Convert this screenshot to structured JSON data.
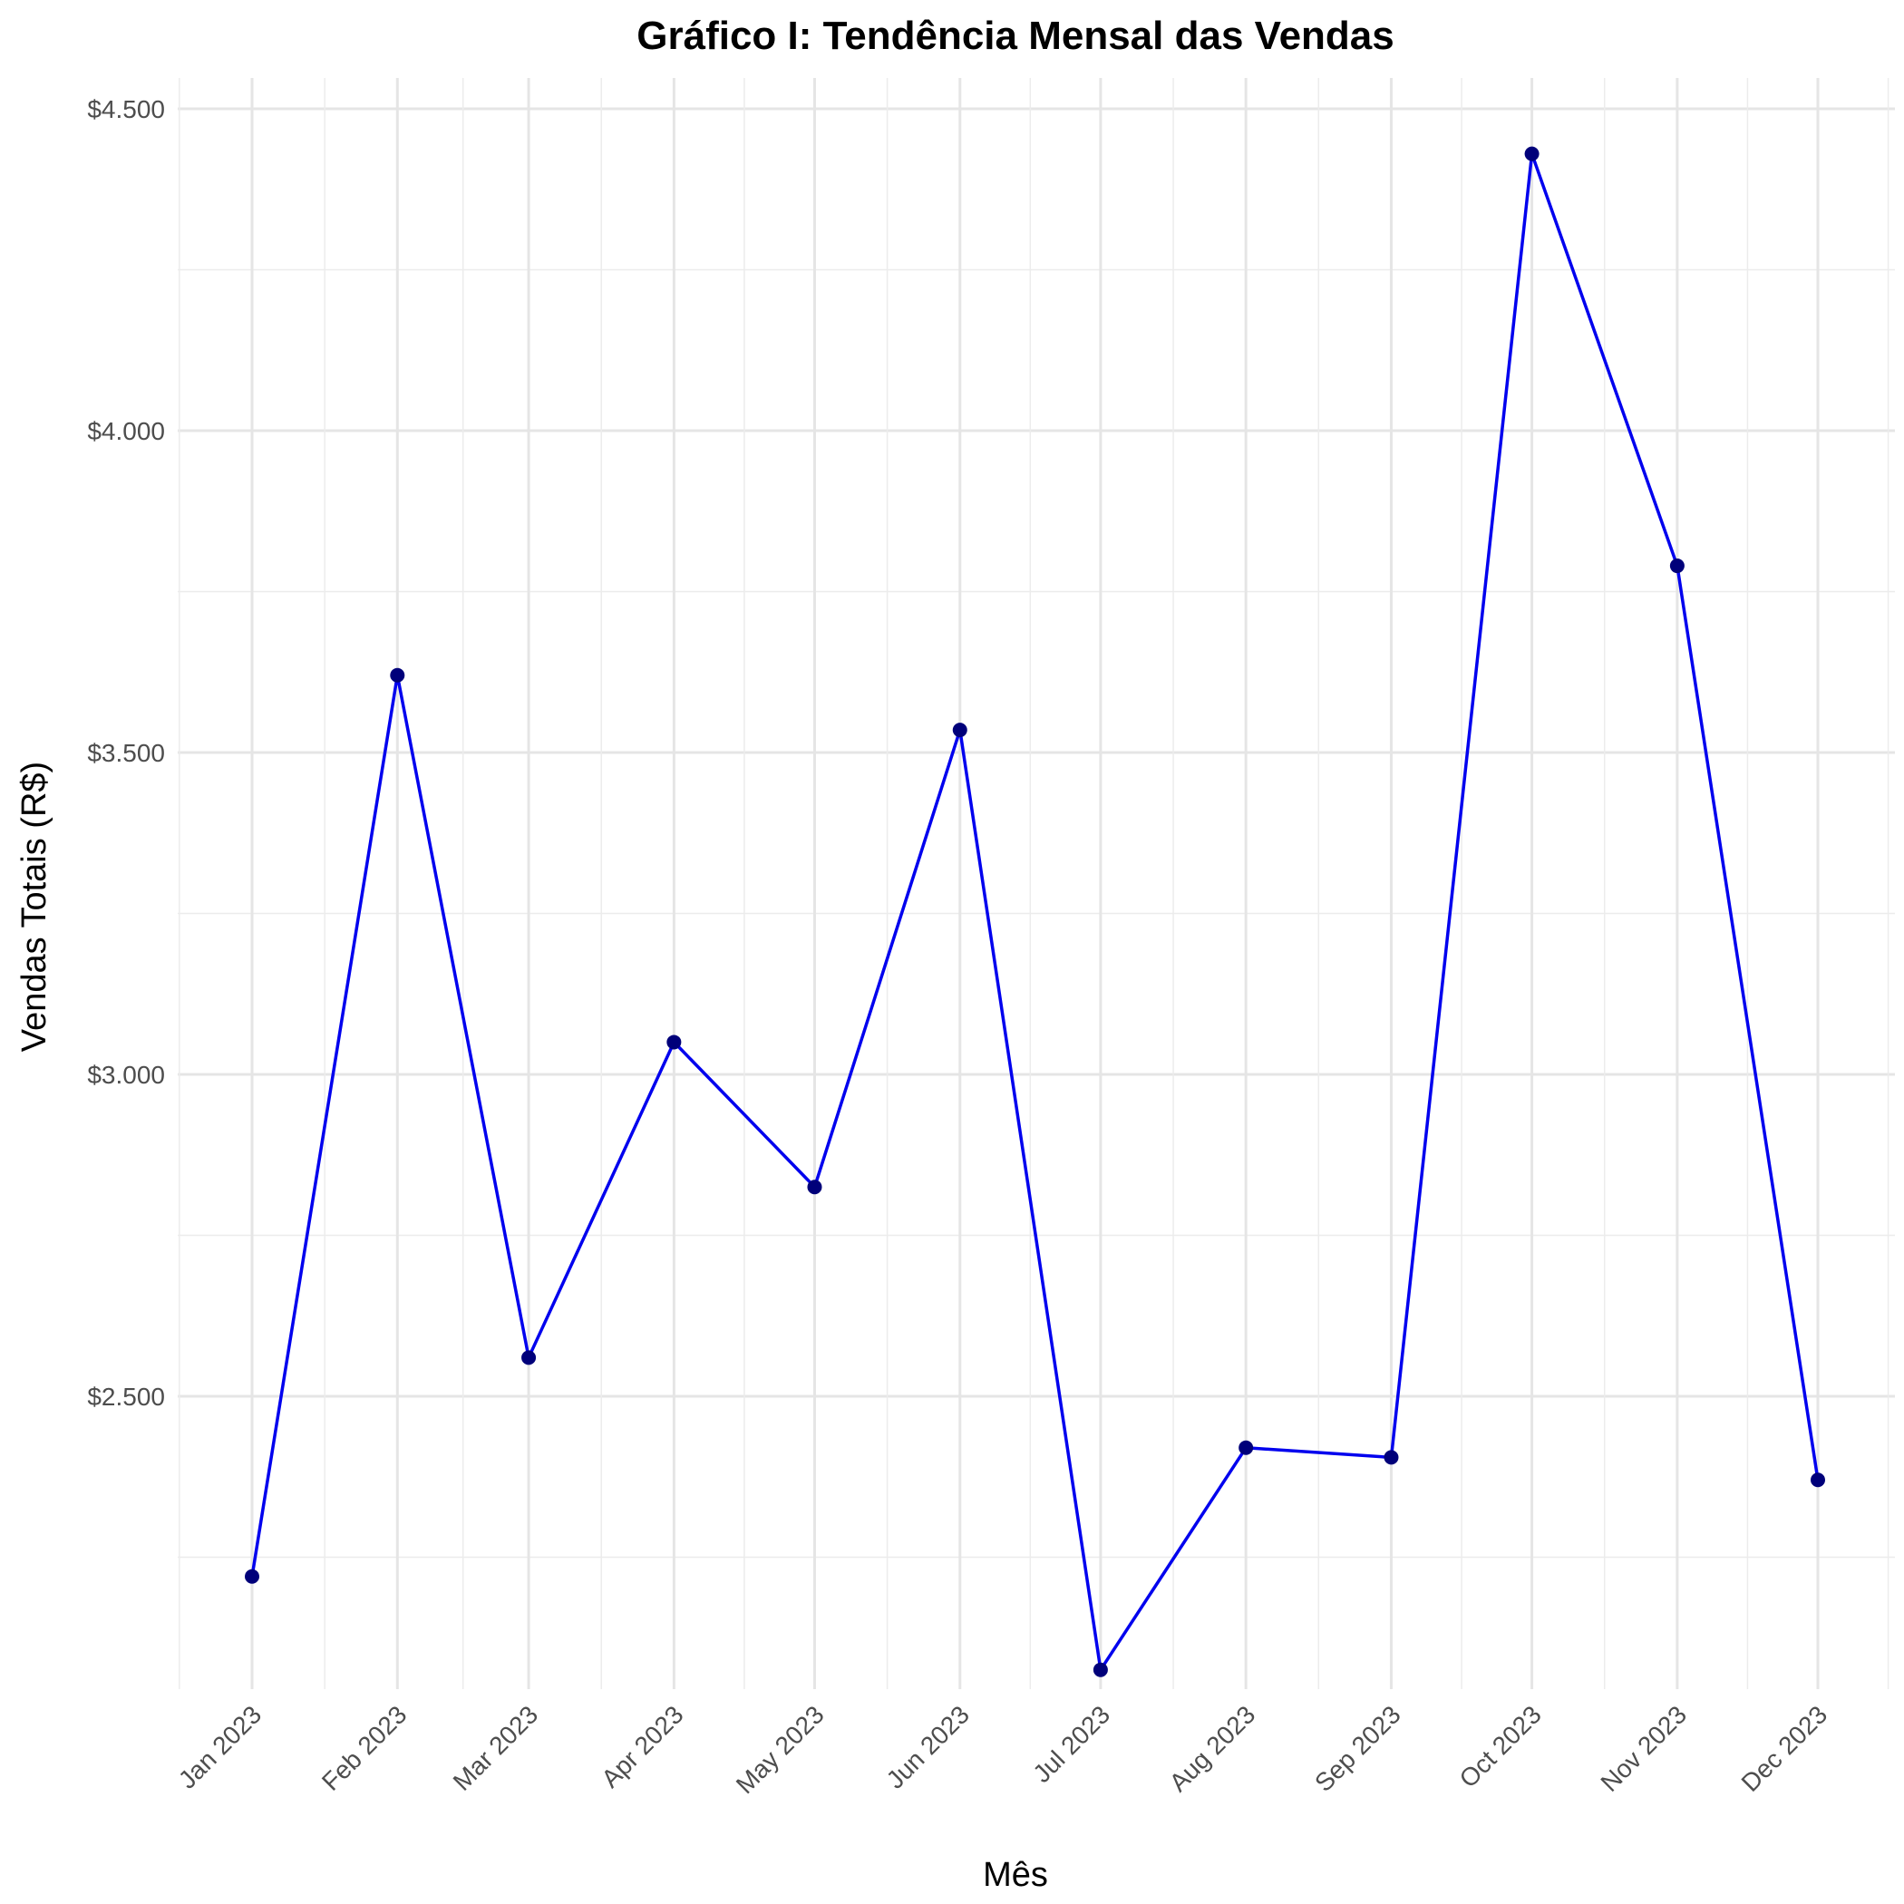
{
  "chart_data": {
    "type": "line",
    "title": "Gráfico I: Tendência Mensal das Vendas",
    "xlabel": "Mês",
    "ylabel": "Vendas Totais (R$)",
    "categories": [
      "Jan 2023",
      "Feb 2023",
      "Mar 2023",
      "Apr 2023",
      "May 2023",
      "Jun 2023",
      "Jul 2023",
      "Aug 2023",
      "Sep 2023",
      "Oct 2023",
      "Nov 2023",
      "Dec 2023"
    ],
    "x": [
      "2023-01-01",
      "2023-02-01",
      "2023-03-01",
      "2023-04-01",
      "2023-05-01",
      "2023-06-01",
      "2023-07-01",
      "2023-08-01",
      "2023-09-01",
      "2023-10-01",
      "2023-11-01",
      "2023-12-01"
    ],
    "series": [
      {
        "values": [
          2220,
          3620,
          2560,
          3050,
          2825,
          3535,
          2075,
          2420,
          2405,
          4430,
          3790,
          2370
        ]
      }
    ],
    "ylim": [
      2045,
      4545
    ],
    "yticks": [
      2500,
      3000,
      3500,
      4000,
      4500
    ],
    "ytick_labels": [
      "$2.500",
      "$3.000",
      "$3.500",
      "$4.000",
      "$4.500"
    ],
    "grid": true,
    "line_color": "#0000ee",
    "marker_color": "#00007a"
  }
}
